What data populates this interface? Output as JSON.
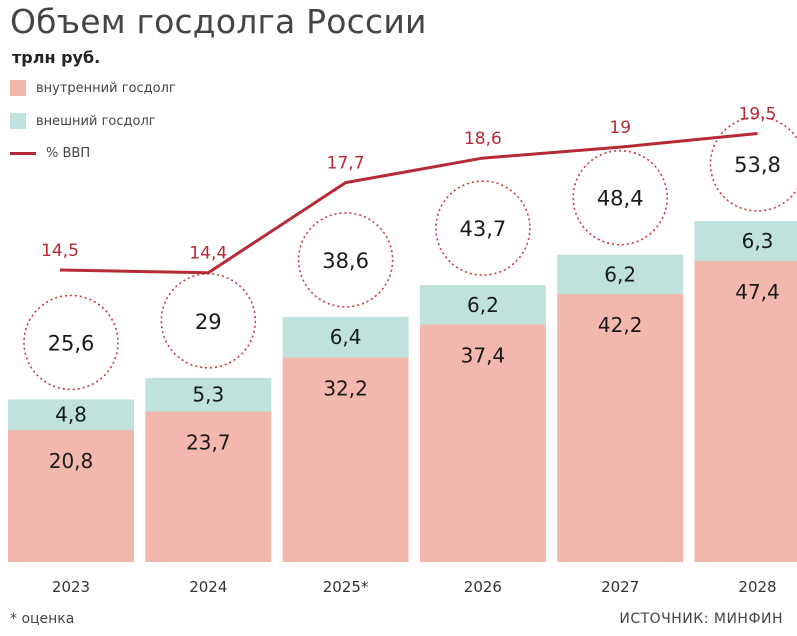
{
  "title": "Объем госдолга России",
  "subtitle": "трлн руб.",
  "legend": {
    "domestic": "внутренний госдолг",
    "external": "внешний госдолг",
    "gdp": "% ВВП"
  },
  "footnote": "* оценка",
  "source": "ИСТОЧНИК: МИНФИН",
  "colors": {
    "domestic": "#f2b8ad",
    "external": "#bfe3dc",
    "gdp_line": "#b62a35",
    "gdp_label": "#b62a35",
    "circle": "#d0343f"
  },
  "chart_data": {
    "type": "bar",
    "stacked": true,
    "categories": [
      "2023",
      "2024",
      "2025*",
      "2026",
      "2027",
      "2028"
    ],
    "series": [
      {
        "name": "внутренний госдолг",
        "values": [
          "20,8",
          "23,7",
          "32,2",
          "37,4",
          "42,2",
          "47,4"
        ]
      },
      {
        "name": "внешний госдолг",
        "values": [
          "4,8",
          "5,3",
          "6,4",
          "6,2",
          "6,2",
          "6,3"
        ]
      }
    ],
    "totals": [
      "25,6",
      "29",
      "38,6",
      "43,7",
      "48,4",
      "53,8"
    ],
    "line_series": {
      "name": "% ВВП",
      "values": [
        "14,5",
        "14,4",
        "17,7",
        "18,6",
        "19",
        "19,5"
      ]
    },
    "ylim": [
      0,
      60
    ]
  }
}
